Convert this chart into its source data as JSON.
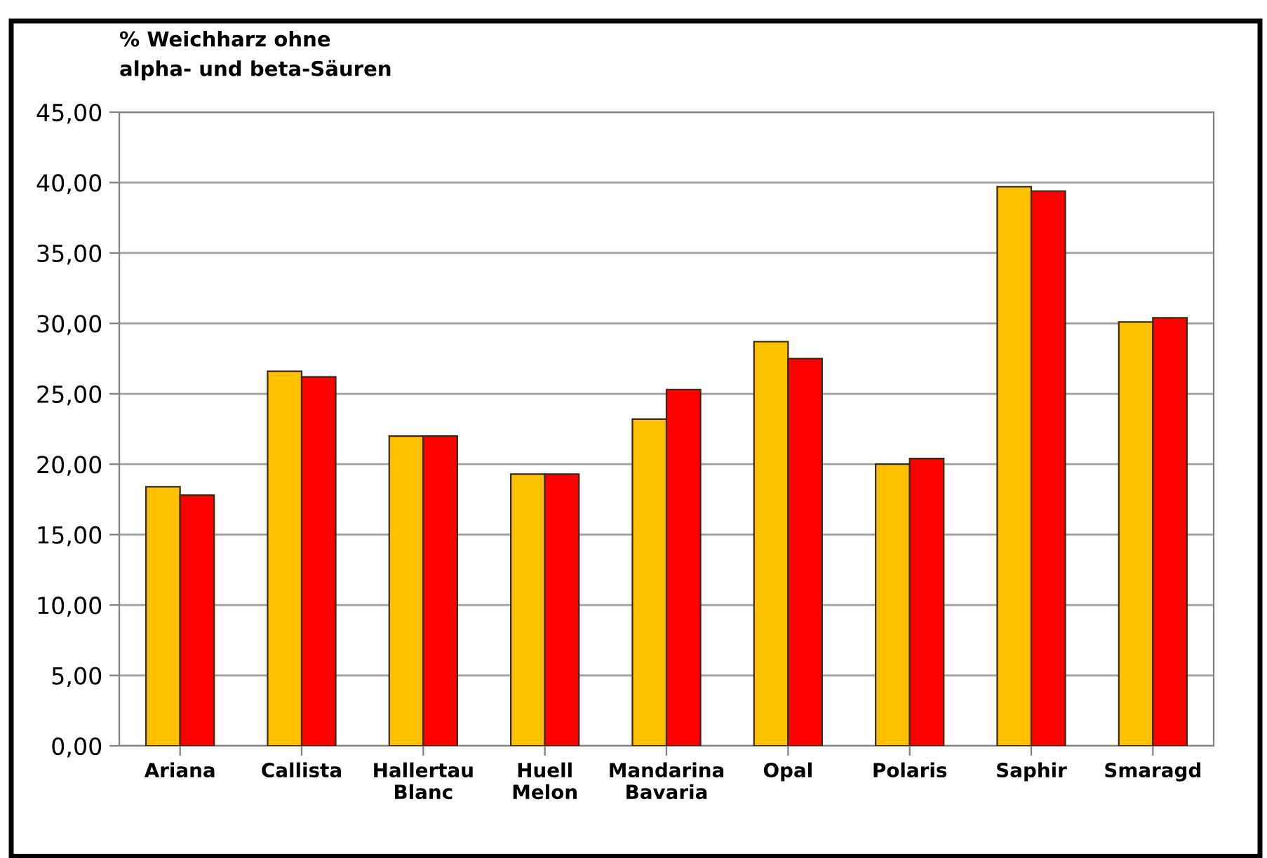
{
  "chart_data": {
    "type": "bar",
    "title": "% Weichharz ohne\nalpha- und beta-Säuren",
    "categories": [
      "Ariana",
      "Callista",
      "Hallertau\nBlanc",
      "Huell\nMelon",
      "Mandarina\nBavaria",
      "Opal",
      "Polaris",
      "Saphir",
      "Smaragd"
    ],
    "series": [
      {
        "color": "#ffc000",
        "values": [
          18.4,
          26.6,
          22.0,
          19.3,
          23.2,
          28.7,
          20.0,
          39.7,
          30.1
        ]
      },
      {
        "color": "#ff0000",
        "values": [
          17.8,
          26.2,
          22.0,
          19.3,
          25.3,
          27.5,
          20.4,
          39.4,
          30.4
        ]
      }
    ],
    "ylim": [
      0,
      45
    ],
    "yticks": [
      {
        "value": 0,
        "label": "0,00"
      },
      {
        "value": 5,
        "label": "5,00"
      },
      {
        "value": 10,
        "label": "10,00"
      },
      {
        "value": 15,
        "label": "15,00"
      },
      {
        "value": 20,
        "label": "20,00"
      },
      {
        "value": 25,
        "label": "25,00"
      },
      {
        "value": 30,
        "label": "30,00"
      },
      {
        "value": 35,
        "label": "35,00"
      },
      {
        "value": 40,
        "label": "40,00"
      },
      {
        "value": 45,
        "label": "45,00"
      }
    ],
    "grid": "y",
    "legend": false
  }
}
